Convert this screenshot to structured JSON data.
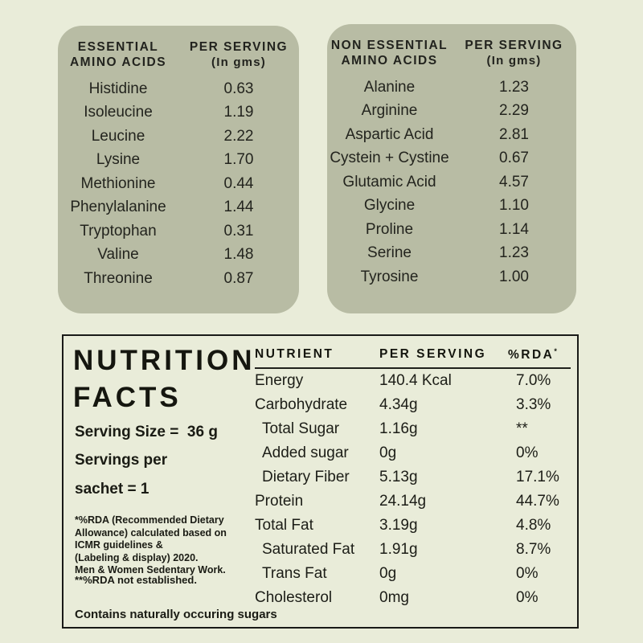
{
  "colors": {
    "background": "#e9ecd9",
    "panel": "#b8bca4",
    "text": "#1d1e1a",
    "border": "#191a17"
  },
  "essential": {
    "header_col1_line1": "ESSENTIAL",
    "header_col1_line2": "AMINO ACIDS",
    "header_col2_line1": "PER SERVING",
    "header_col2_line2": "(In gms)",
    "rows": [
      {
        "name": "Histidine",
        "value": "0.63"
      },
      {
        "name": "Isoleucine",
        "value": "1.19"
      },
      {
        "name": "Leucine",
        "value": "2.22"
      },
      {
        "name": "Lysine",
        "value": "1.70"
      },
      {
        "name": "Methionine",
        "value": "0.44"
      },
      {
        "name": "Phenylalanine",
        "value": "1.44"
      },
      {
        "name": "Tryptophan",
        "value": "0.31"
      },
      {
        "name": "Valine",
        "value": "1.48"
      },
      {
        "name": "Threonine",
        "value": "0.87"
      }
    ]
  },
  "non_essential": {
    "header_col1_line1": "NON ESSENTIAL",
    "header_col1_line2": "AMINO ACIDS",
    "header_col2_line1": "PER SERVING",
    "header_col2_line2": "(In gms)",
    "rows": [
      {
        "name": "Alanine",
        "value": "1.23"
      },
      {
        "name": "Arginine",
        "value": "2.29"
      },
      {
        "name": "Aspartic Acid",
        "value": "2.81"
      },
      {
        "name": "Cystein + Cystine",
        "value": "0.67"
      },
      {
        "name": "Glutamic Acid",
        "value": "4.57"
      },
      {
        "name": "Glycine",
        "value": "1.10"
      },
      {
        "name": "Proline",
        "value": "1.14"
      },
      {
        "name": "Serine",
        "value": "1.23"
      },
      {
        "name": "Tyrosine",
        "value": "1.00"
      }
    ]
  },
  "nutrition": {
    "title_line1": "NUTRITION",
    "title_line2": "FACTS",
    "serving_size": "Serving Size =  36 g",
    "servings_line1": "Servings per",
    "servings_line2": "sachet = 1",
    "rda_note_lines": [
      "*%RDA (Recommended Dietary",
      "Allowance) calculated based on",
      "ICMR guidelines &",
      "(Labeling & display) 2020.",
      "Men & Women Sedentary Work."
    ],
    "not_established": "**%RDA not established.",
    "contains": "Contains naturally occuring sugars",
    "table": {
      "col_nutrient": "NUTRIENT",
      "col_serving": "PER SERVING",
      "col_rda": "%RDA",
      "col_rda_sup": "*",
      "rows": [
        {
          "name": "Energy",
          "value": "140.4 Kcal",
          "rda": "7.0%",
          "indent": false
        },
        {
          "name": "Carbohydrate",
          "value": "4.34g",
          "rda": "3.3%",
          "indent": false
        },
        {
          "name": "Total Sugar",
          "value": "1.16g",
          "rda": "**",
          "indent": true
        },
        {
          "name": "Added sugar",
          "value": "0g",
          "rda": "0%",
          "indent": true
        },
        {
          "name": "Dietary Fiber",
          "value": "5.13g",
          "rda": "17.1%",
          "indent": true
        },
        {
          "name": "Protein",
          "value": "24.14g",
          "rda": "44.7%",
          "indent": false
        },
        {
          "name": "Total Fat",
          "value": "3.19g",
          "rda": "4.8%",
          "indent": false
        },
        {
          "name": "Saturated Fat",
          "value": "1.91g",
          "rda": "8.7%",
          "indent": true
        },
        {
          "name": "Trans Fat",
          "value": "0g",
          "rda": "0%",
          "indent": true
        },
        {
          "name": "Cholesterol",
          "value": "0mg",
          "rda": "0%",
          "indent": false
        }
      ]
    }
  }
}
